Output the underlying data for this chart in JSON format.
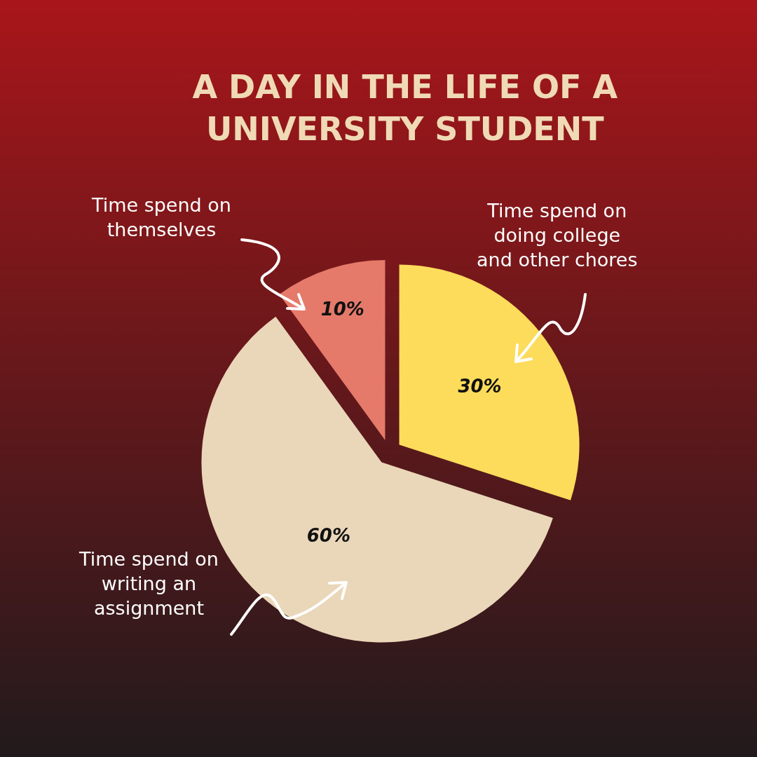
{
  "chart_data": {
    "type": "pie",
    "title": "A DAY IN THE LIFE OF A UNIVERSITY STUDENT",
    "categories": [
      "Time spend on themselves",
      "Time spend on doing college and other chores",
      "Time spend on writing an assignment"
    ],
    "values": [
      10,
      30,
      60
    ],
    "colors": [
      "#e57a6a",
      "#fddc5c",
      "#ead6b8"
    ],
    "value_labels": [
      "10%",
      "30%",
      "60%"
    ],
    "legend": false
  }
}
